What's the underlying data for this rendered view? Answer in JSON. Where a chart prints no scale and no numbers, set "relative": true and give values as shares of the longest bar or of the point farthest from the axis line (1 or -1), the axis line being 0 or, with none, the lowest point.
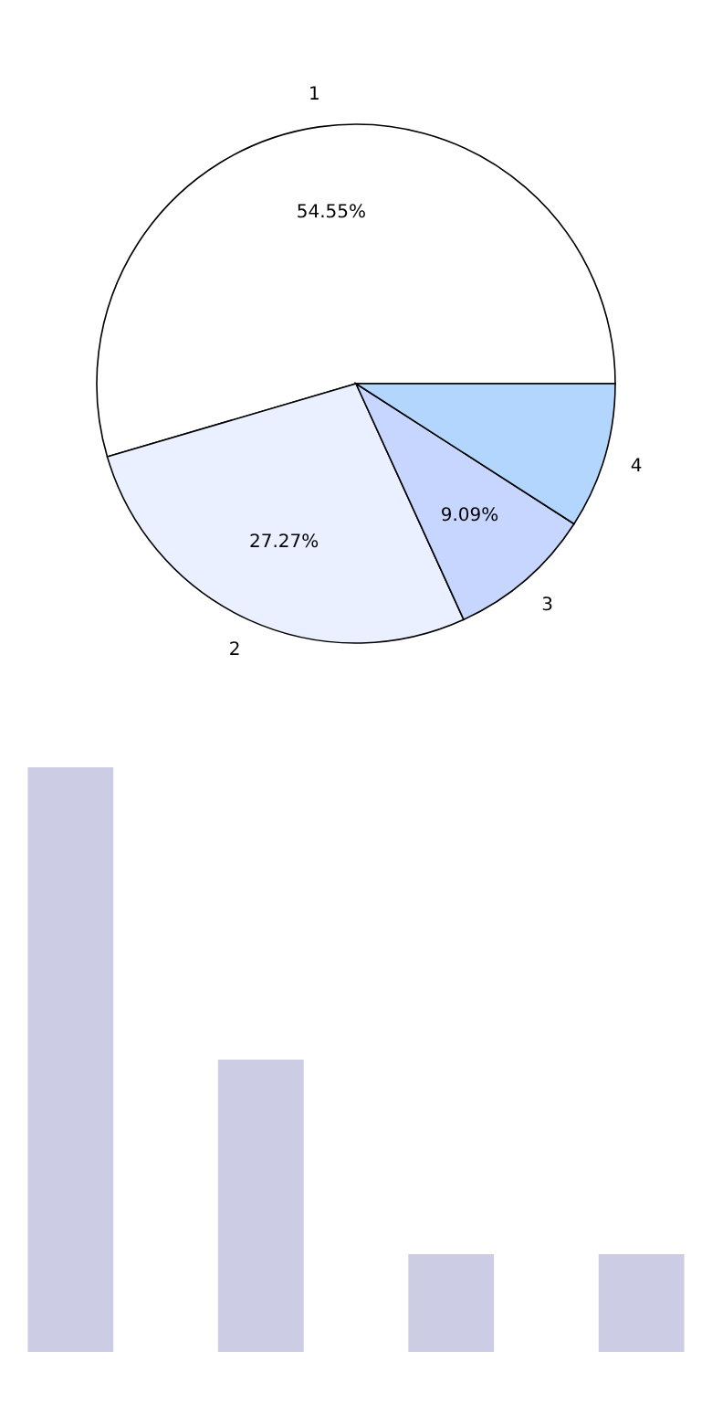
{
  "chart_data": [
    {
      "type": "pie",
      "categories": [
        "1",
        "2",
        "3",
        "4"
      ],
      "values": [
        54.55,
        27.27,
        9.09,
        9.09
      ],
      "colors": [
        "#ffffff",
        "#eaf0ff",
        "#c6d6ff",
        "#b3d6ff"
      ],
      "value_labels": [
        "54.55%",
        "27.27%",
        "9.09%",
        null
      ]
    },
    {
      "type": "bar",
      "relative": true,
      "categories": [
        null,
        null,
        null,
        null
      ],
      "values": [
        1,
        0.5,
        0.167,
        0.167
      ],
      "color": "#cccce4"
    }
  ]
}
